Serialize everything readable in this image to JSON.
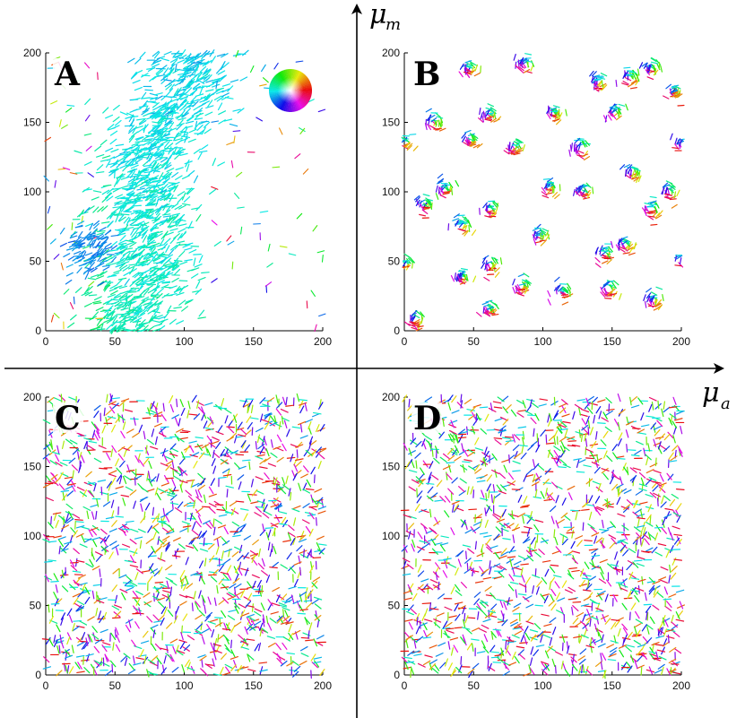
{
  "figure": {
    "x_axis_label": "μ",
    "x_axis_subscript": "a",
    "y_axis_label": "μ",
    "y_axis_subscript": "m"
  },
  "colors": {
    "axis": "#000000",
    "palette": [
      "#e6194b",
      "#f032e6",
      "#911eb4",
      "#4363d8",
      "#1f77b4",
      "#17becf",
      "#2ca02c",
      "#20b2aa",
      "#bcbd22",
      "#ffd700",
      "#ff7f0e",
      "#d62728"
    ]
  },
  "chart_data": [
    {
      "id": "A",
      "type": "scatter",
      "description_tag": "velocity-field-aligned-flock",
      "panel_label": "A",
      "xlim": [
        0,
        200
      ],
      "ylim": [
        0,
        200
      ],
      "xticks": [
        "0",
        "50",
        "100",
        "150",
        "200"
      ],
      "yticks": [
        "0",
        "50",
        "100",
        "150",
        "200"
      ],
      "has_color_wheel": true,
      "pattern": "band",
      "band_x_range": [
        40,
        120
      ],
      "band_y_range": [
        0,
        200
      ],
      "dominant_angle_deg": 30,
      "particles": 1400
    },
    {
      "id": "B",
      "type": "scatter",
      "panel_label": "B",
      "xlim": [
        0,
        200
      ],
      "ylim": [
        0,
        200
      ],
      "xticks": [
        "0",
        "50",
        "100",
        "150",
        "200"
      ],
      "yticks": [
        "0",
        "50",
        "100",
        "150",
        "200"
      ],
      "has_color_wheel": false,
      "pattern": "clusters",
      "cluster_centers": [
        [
          8,
          8
        ],
        [
          62,
          15
        ],
        [
          115,
          28
        ],
        [
          148,
          30
        ],
        [
          180,
          22
        ],
        [
          1,
          48
        ],
        [
          42,
          38
        ],
        [
          62,
          47
        ],
        [
          85,
          32
        ],
        [
          145,
          55
        ],
        [
          160,
          62
        ],
        [
          200,
          50
        ],
        [
          42,
          75
        ],
        [
          62,
          87
        ],
        [
          98,
          68
        ],
        [
          15,
          90
        ],
        [
          30,
          102
        ],
        [
          105,
          103
        ],
        [
          130,
          100
        ],
        [
          178,
          88
        ],
        [
          192,
          100
        ],
        [
          165,
          113
        ],
        [
          1,
          135
        ],
        [
          22,
          150
        ],
        [
          48,
          137
        ],
        [
          62,
          155
        ],
        [
          80,
          132
        ],
        [
          108,
          157
        ],
        [
          128,
          132
        ],
        [
          152,
          157
        ],
        [
          200,
          135
        ],
        [
          195,
          172
        ],
        [
          140,
          178
        ],
        [
          163,
          183
        ],
        [
          178,
          188
        ],
        [
          47,
          188
        ],
        [
          88,
          192
        ]
      ]
    },
    {
      "id": "C",
      "type": "scatter",
      "panel_label": "C",
      "xlim": [
        0,
        200
      ],
      "ylim": [
        0,
        200
      ],
      "xticks": [
        "0",
        "50",
        "100",
        "150",
        "200"
      ],
      "yticks": [
        "0",
        "50",
        "100",
        "150",
        "200"
      ],
      "has_color_wheel": false,
      "pattern": "uniform-random",
      "particles": 1500
    },
    {
      "id": "D",
      "type": "scatter",
      "panel_label": "D",
      "xlim": [
        0,
        200
      ],
      "ylim": [
        0,
        200
      ],
      "xticks": [
        "0",
        "50",
        "100",
        "150",
        "200"
      ],
      "yticks": [
        "0",
        "50",
        "100",
        "150",
        "200"
      ],
      "has_color_wheel": false,
      "pattern": "uniform-random",
      "particles": 1500
    }
  ]
}
